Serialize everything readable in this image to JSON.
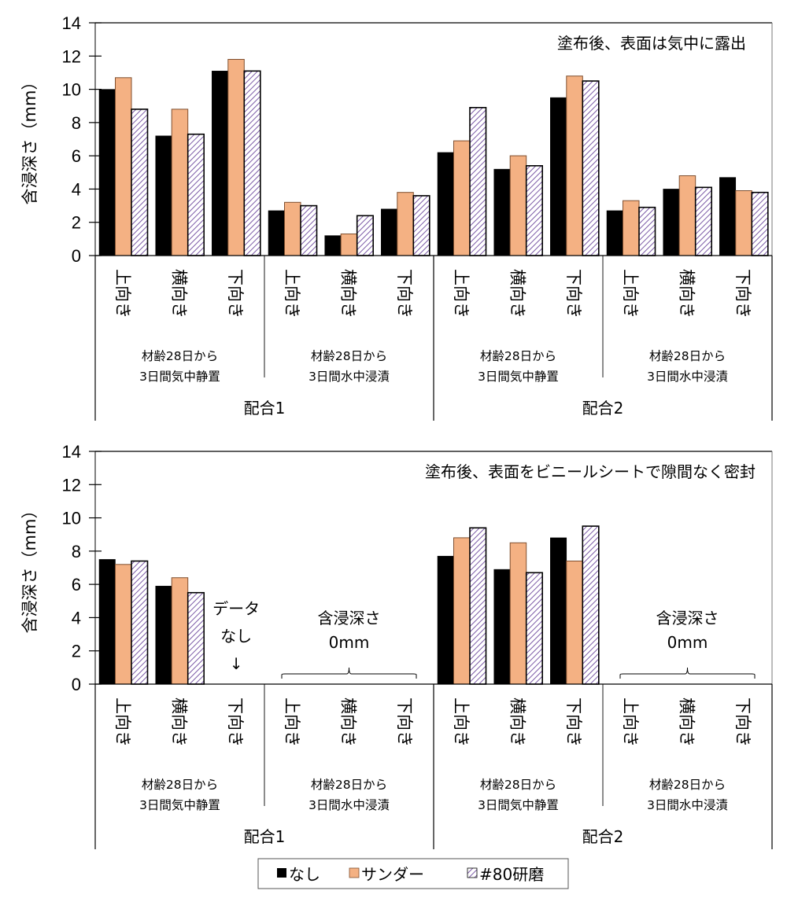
{
  "colors": {
    "none": "#000000",
    "sander": "#f4b183",
    "sander_stroke": "#7f4f2f",
    "hatch_line": "#7b5aa6",
    "hatch_bg": "#ffffff",
    "axis": "#000000"
  },
  "legend": {
    "items": [
      {
        "label": "なし",
        "key": "none"
      },
      {
        "label": "サンダー",
        "key": "sander"
      },
      {
        "label": "#80研磨",
        "key": "hatch"
      }
    ]
  },
  "chart_data": [
    {
      "type": "bar",
      "title": "塗布後、表面は気中に露出",
      "ylabel": "含浸深さ（mm）",
      "xlabel": "",
      "ylim": [
        0,
        14
      ],
      "yticks": [
        "0",
        "2",
        "4",
        "6",
        "8",
        "10",
        "12",
        "14"
      ],
      "grid": false,
      "legend_position": "bottom",
      "categories": [
        "上向き",
        "横向き",
        "下向き",
        "上向き",
        "横向き",
        "下向き",
        "上向き",
        "横向き",
        "下向き",
        "上向き",
        "横向き",
        "下向き"
      ],
      "subgroups": [
        {
          "line1": "材齢28日から",
          "line2": "3日間気中静置"
        },
        {
          "line1": "材齢28日から",
          "line2": "3日間水中浸漬"
        },
        {
          "line1": "材齢28日から",
          "line2": "3日間気中静置"
        },
        {
          "line1": "材齢28日から",
          "line2": "3日間水中浸漬"
        }
      ],
      "groups": [
        "配合1",
        "配合2"
      ],
      "series": [
        {
          "name": "なし",
          "values": [
            10.0,
            7.2,
            11.1,
            2.7,
            1.2,
            2.8,
            6.2,
            5.2,
            9.5,
            2.7,
            4.0,
            4.7
          ]
        },
        {
          "name": "サンダー",
          "values": [
            10.7,
            8.8,
            11.8,
            3.2,
            1.3,
            3.8,
            6.9,
            6.0,
            10.8,
            3.3,
            4.8,
            3.9
          ]
        },
        {
          "name": "#80研磨",
          "values": [
            8.8,
            7.3,
            11.1,
            3.0,
            2.4,
            3.6,
            8.9,
            5.4,
            10.5,
            2.9,
            4.1,
            3.8
          ]
        }
      ],
      "annotations": []
    },
    {
      "type": "bar",
      "title": "塗布後、表面をビニールシートで隙間なく密封",
      "ylabel": "含浸深さ（mm）",
      "xlabel": "",
      "ylim": [
        0,
        14
      ],
      "yticks": [
        "0",
        "2",
        "4",
        "6",
        "8",
        "10",
        "12",
        "14"
      ],
      "grid": false,
      "legend_position": "bottom",
      "categories": [
        "上向き",
        "横向き",
        "下向き",
        "上向き",
        "横向き",
        "下向き",
        "上向き",
        "横向き",
        "下向き",
        "上向き",
        "横向き",
        "下向き"
      ],
      "subgroups": [
        {
          "line1": "材齢28日から",
          "line2": "3日間気中静置"
        },
        {
          "line1": "材齢28日から",
          "line2": "3日間水中浸漬"
        },
        {
          "line1": "材齢28日から",
          "line2": "3日間気中静置"
        },
        {
          "line1": "材齢28日から",
          "line2": "3日間水中浸漬"
        }
      ],
      "groups": [
        "配合1",
        "配合2"
      ],
      "series": [
        {
          "name": "なし",
          "values": [
            7.5,
            5.9,
            null,
            0,
            0,
            0,
            7.7,
            6.9,
            8.8,
            0,
            0,
            0
          ]
        },
        {
          "name": "サンダー",
          "values": [
            7.2,
            6.4,
            null,
            0,
            0,
            0,
            8.8,
            8.5,
            7.4,
            0,
            0,
            0
          ]
        },
        {
          "name": "#80研磨",
          "values": [
            7.4,
            5.5,
            null,
            0,
            0,
            0,
            9.4,
            6.7,
            9.5,
            0,
            0,
            0
          ]
        }
      ],
      "annotations": [
        {
          "kind": "no-data",
          "category_index": 2,
          "lines": [
            "データ",
            "なし",
            "↓"
          ]
        },
        {
          "kind": "zero-brace",
          "from_index": 3,
          "to_index": 5,
          "lines": [
            "含浸深さ",
            "0mm"
          ]
        },
        {
          "kind": "zero-brace",
          "from_index": 9,
          "to_index": 11,
          "lines": [
            "含浸深さ",
            "0mm"
          ]
        }
      ]
    }
  ]
}
